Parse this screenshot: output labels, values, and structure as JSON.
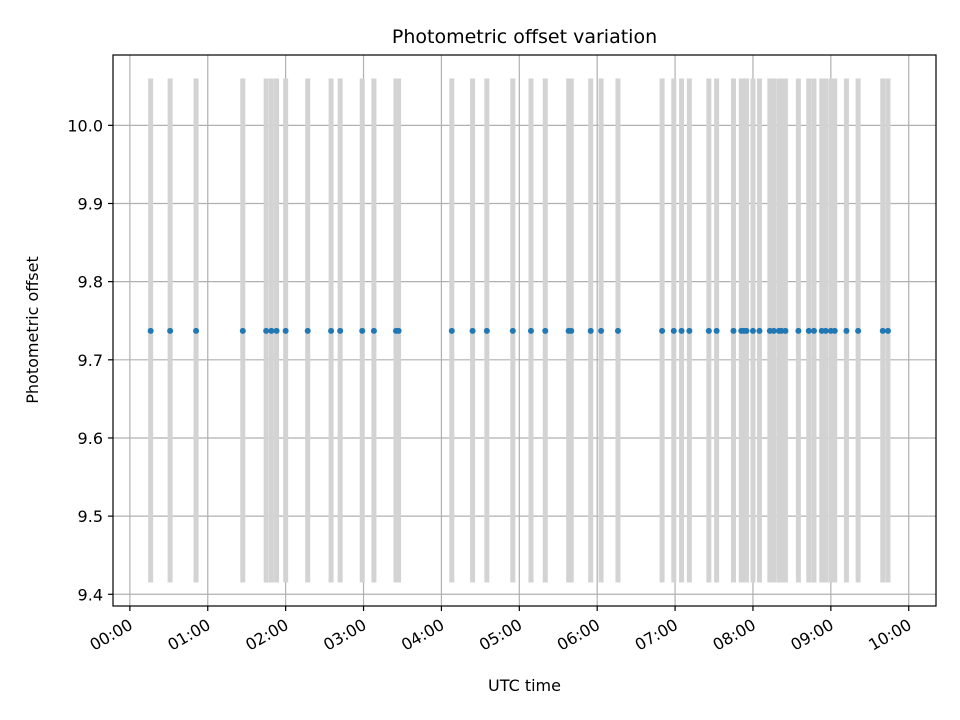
{
  "chart_data": {
    "type": "scatter",
    "title": "Photometric offset variation",
    "xlabel": "UTC time",
    "ylabel": "Photometric offset",
    "xlim": [
      "23:47",
      "10:21"
    ],
    "ylim": [
      9.385,
      10.09
    ],
    "grid": true,
    "x_ticks": [
      "00:00",
      "01:00",
      "02:00",
      "03:00",
      "04:00",
      "05:00",
      "06:00",
      "07:00",
      "08:00",
      "09:00",
      "10:00"
    ],
    "y_ticks": [
      9.4,
      9.5,
      9.6,
      9.7,
      9.8,
      9.9,
      10.0
    ],
    "point_color": "#1f77b4",
    "vline_color": "#d3d3d3",
    "vline_range": [
      9.415,
      10.06
    ],
    "series": [
      {
        "values_y": 9.737,
        "x": [
          "00:16",
          "00:31",
          "00:51",
          "01:27",
          "01:45",
          "01:49",
          "01:53",
          "02:00",
          "02:17",
          "02:35",
          "02:42",
          "02:59",
          "03:08",
          "03:25",
          "03:27",
          "04:08",
          "04:24",
          "04:35",
          "04:55",
          "05:09",
          "05:20",
          "05:38",
          "05:40",
          "05:55",
          "06:03",
          "06:16",
          "06:50",
          "06:59",
          "07:05",
          "07:11",
          "07:26",
          "07:32",
          "07:45",
          "07:51",
          "07:53",
          "07:55",
          "08:00",
          "08:05",
          "08:13",
          "08:16",
          "08:20",
          "08:22",
          "08:25",
          "08:35",
          "08:43",
          "08:47",
          "08:53",
          "08:56",
          "09:00",
          "09:03",
          "09:12",
          "09:21",
          "09:40",
          "09:44"
        ]
      }
    ]
  }
}
